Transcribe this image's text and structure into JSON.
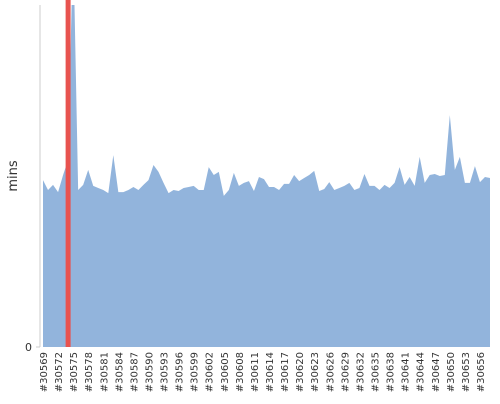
{
  "chart_data": {
    "type": "area",
    "ylabel": "mins",
    "categories": [
      "#30569",
      null,
      null,
      "#30572",
      null,
      null,
      "#30575",
      null,
      null,
      "#30578",
      null,
      null,
      "#30581",
      null,
      null,
      "#30584",
      null,
      null,
      "#30587",
      null,
      null,
      "#30590",
      null,
      null,
      "#30593",
      null,
      null,
      "#30596",
      null,
      null,
      "#30599",
      null,
      null,
      "#30602",
      null,
      null,
      "#30605",
      null,
      null,
      "#30608",
      null,
      null,
      "#30611",
      null,
      null,
      "#30614",
      null,
      null,
      "#30617",
      null,
      null,
      "#30620",
      null,
      null,
      "#30623",
      null,
      null,
      "#30626",
      null,
      null,
      "#30629",
      null,
      null,
      "#30632",
      null,
      null,
      "#30635",
      null,
      null,
      "#30638",
      null,
      null,
      "#30641",
      null,
      null,
      "#30644",
      null,
      null,
      "#30647",
      null,
      null,
      "#30650",
      null,
      null,
      "#30653",
      null,
      null,
      "#30656",
      null,
      null
    ],
    "values": [
      48.8,
      45.9,
      47.4,
      45.3,
      50.3,
      54.7,
      120,
      45.9,
      47.4,
      51.8,
      47.1,
      46.5,
      45.9,
      45.0,
      56.1,
      45.3,
      45.3,
      45.9,
      46.8,
      45.9,
      47.4,
      48.8,
      53.2,
      51.2,
      48.0,
      45.0,
      45.9,
      45.6,
      46.5,
      46.8,
      47.1,
      45.9,
      45.9,
      52.6,
      50.3,
      51.2,
      44.2,
      45.9,
      50.9,
      47.1,
      48.0,
      48.5,
      45.6,
      49.7,
      49.1,
      46.8,
      46.8,
      45.9,
      47.7,
      47.7,
      50.3,
      48.5,
      49.4,
      50.3,
      51.5,
      45.6,
      46.2,
      48.2,
      45.9,
      46.5,
      47.1,
      48.0,
      45.9,
      46.5,
      50.6,
      47.1,
      47.1,
      45.9,
      47.4,
      46.5,
      48.0,
      52.6,
      47.4,
      49.7,
      47.1,
      55.6,
      48.0,
      50.3,
      50.6,
      50.0,
      50.3,
      67.8,
      51.8,
      55.6,
      48.0,
      48.0,
      52.9,
      48.2,
      49.7,
      49.4
    ],
    "color": "#92b4dc",
    "highlight_index": 5,
    "highlight_color": "#e8534f",
    "ylim": [
      0,
      100
    ],
    "yticks": [
      0
    ]
  }
}
